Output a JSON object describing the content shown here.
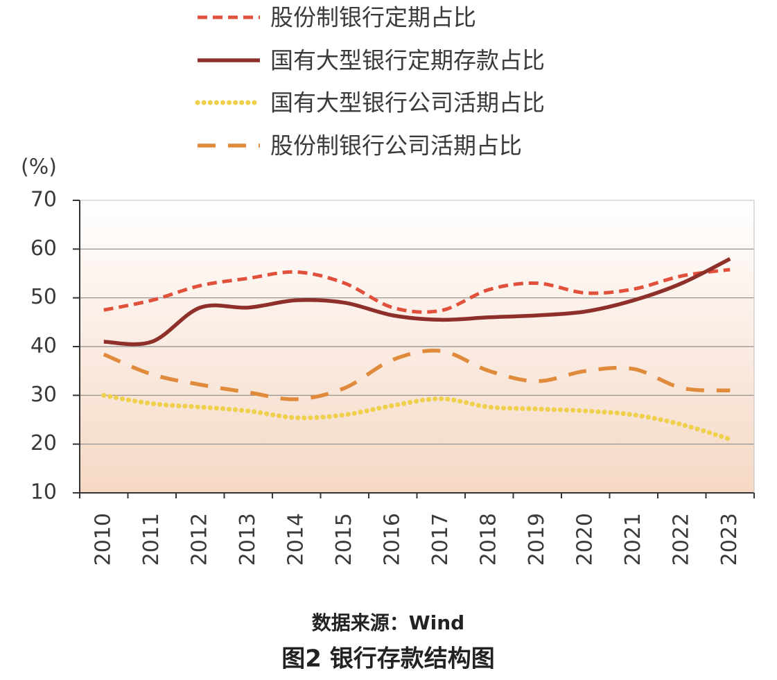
{
  "chart_data": {
    "type": "line",
    "ylabel": "(%)",
    "source": "数据来源：Wind",
    "caption": "图2  银行存款结构图",
    "categories": [
      "2010",
      "2011",
      "2012",
      "2013",
      "2014",
      "2015",
      "2016",
      "2017",
      "2018",
      "2019",
      "2020",
      "2021",
      "2022",
      "2023"
    ],
    "ylim": [
      10,
      70
    ],
    "yticks": [
      10,
      20,
      30,
      40,
      50,
      60,
      70
    ],
    "grid": true,
    "legend": "top",
    "series": [
      {
        "name": "股份制银行定期占比",
        "color": "#e0503a",
        "style": "dashed",
        "values": [
          47.5,
          49.5,
          52.5,
          54,
          55.3,
          53,
          48,
          47.4,
          51.7,
          53,
          51,
          51.8,
          54.5,
          55.8
        ]
      },
      {
        "name": "国有大型银行定期存款占比",
        "color": "#8e2f2a",
        "style": "solid",
        "values": [
          41,
          41,
          48,
          48,
          49.5,
          49,
          46.4,
          45.5,
          46,
          46.4,
          47.2,
          49.5,
          53,
          58
        ]
      },
      {
        "name": "国有大型银行公司活期占比",
        "color": "#eed04c",
        "style": "dotted",
        "values": [
          30,
          28.3,
          27.6,
          26.8,
          25.4,
          26,
          27.9,
          29.3,
          27.6,
          27.2,
          26.8,
          26,
          24,
          21
        ]
      },
      {
        "name": "股份制银行公司活期占比",
        "color": "#e08a3c",
        "style": "long-dashed",
        "values": [
          38.4,
          34.3,
          32.2,
          30.6,
          29.2,
          31.5,
          37.3,
          39.1,
          35,
          32.9,
          35,
          35.4,
          31.5,
          31
        ]
      }
    ]
  }
}
